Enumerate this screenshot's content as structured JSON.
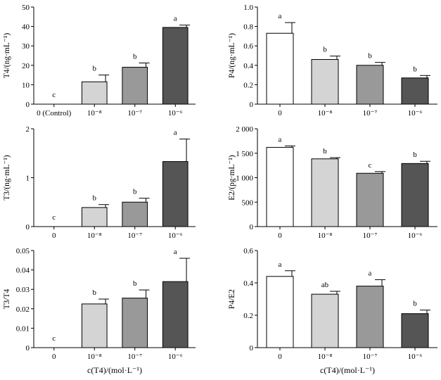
{
  "figure": {
    "shared_xlabel": "c(T4)/(mol·L⁻¹)"
  },
  "chart_data": [
    {
      "id": "t4",
      "type": "bar",
      "ylabel": "T4/(ng·mL⁻¹)",
      "ylim": [
        0,
        50
      ],
      "yticks": [
        "0",
        "10",
        "20",
        "30",
        "40",
        "50"
      ],
      "categories": [
        "0 (Control)",
        "10⁻⁸",
        "10⁻⁷",
        "10⁻⁶"
      ],
      "values": [
        0,
        11.5,
        19,
        39.5
      ],
      "errors": [
        0,
        3.5,
        2.2,
        1.2
      ],
      "significance": [
        "c",
        "b",
        "b",
        "a"
      ],
      "bar_colors": [
        "#ffffff",
        "#d4d4d4",
        "#999999",
        "#555555"
      ]
    },
    {
      "id": "p4",
      "type": "bar",
      "ylabel": "P4/(ng·mL⁻¹)",
      "ylim": [
        0,
        1.0
      ],
      "yticks": [
        "0",
        "0.2",
        "0.4",
        "0.6",
        "0.8",
        "1.0"
      ],
      "categories": [
        "0",
        "10⁻⁸",
        "10⁻⁷",
        "10⁻⁶"
      ],
      "values": [
        0.73,
        0.46,
        0.4,
        0.27
      ],
      "errors": [
        0.11,
        0.035,
        0.03,
        0.025
      ],
      "significance": [
        "a",
        "b",
        "b",
        "b"
      ],
      "bar_colors": [
        "#ffffff",
        "#d4d4d4",
        "#999999",
        "#555555"
      ]
    },
    {
      "id": "t3",
      "type": "bar",
      "ylabel": "T3/(ng·mL⁻¹)",
      "ylim": [
        0,
        2
      ],
      "yticks": [
        "0",
        "1",
        "2"
      ],
      "categories": [
        "0",
        "10⁻⁸",
        "10⁻⁷",
        "10⁻⁶"
      ],
      "values": [
        0,
        0.39,
        0.5,
        1.33
      ],
      "errors": [
        0,
        0.06,
        0.08,
        0.46
      ],
      "significance": [
        "c",
        "b",
        "b",
        "a"
      ],
      "bar_colors": [
        "#ffffff",
        "#d4d4d4",
        "#999999",
        "#555555"
      ]
    },
    {
      "id": "e2",
      "type": "bar",
      "ylabel": "E2/(pg·mL⁻¹)",
      "ylim": [
        0,
        2000
      ],
      "yticks": [
        "0",
        "500",
        "1 000",
        "1 500",
        "2 000"
      ],
      "categories": [
        "0",
        "10⁻⁸",
        "10⁻⁷",
        "10⁻⁶"
      ],
      "values": [
        1620,
        1385,
        1090,
        1290
      ],
      "errors": [
        30,
        25,
        35,
        45
      ],
      "significance": [
        "a",
        "b",
        "c",
        "b"
      ],
      "bar_colors": [
        "#ffffff",
        "#d4d4d4",
        "#999999",
        "#555555"
      ]
    },
    {
      "id": "t3t4",
      "type": "bar",
      "ylabel": "T3/T4",
      "ylim": [
        0,
        0.05
      ],
      "yticks": [
        "0",
        "0.01",
        "0.02",
        "0.03",
        "0.04",
        "0.05"
      ],
      "categories": [
        "0",
        "10⁻⁸",
        "10⁻⁷",
        "10⁻⁶"
      ],
      "values": [
        0,
        0.0225,
        0.0255,
        0.034
      ],
      "errors": [
        0,
        0.0025,
        0.0042,
        0.012
      ],
      "significance": [
        "c",
        "b",
        "b",
        "a"
      ],
      "bar_colors": [
        "#ffffff",
        "#d4d4d4",
        "#999999",
        "#555555"
      ]
    },
    {
      "id": "p4e2",
      "type": "bar",
      "ylabel": "P4/E2",
      "ylim": [
        0,
        0.6
      ],
      "yticks": [
        "0",
        "0.2",
        "0.4",
        "0.6"
      ],
      "categories": [
        "0",
        "10⁻⁸",
        "10⁻⁷",
        "10⁻⁶"
      ],
      "values": [
        0.44,
        0.33,
        0.38,
        0.21
      ],
      "errors": [
        0.035,
        0.018,
        0.04,
        0.022
      ],
      "significance": [
        "a",
        "ab",
        "a",
        "b"
      ],
      "bar_colors": [
        "#ffffff",
        "#d4d4d4",
        "#999999",
        "#555555"
      ]
    }
  ]
}
